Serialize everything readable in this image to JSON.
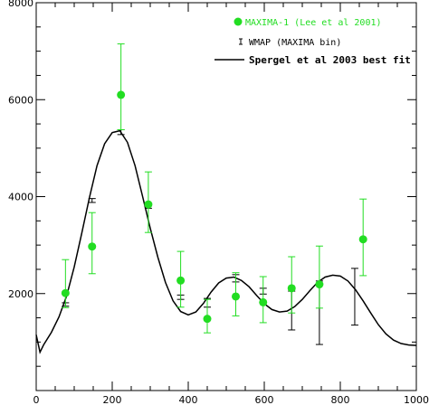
{
  "chart_data": {
    "type": "scatter",
    "title": "",
    "xlabel": "",
    "ylabel": "",
    "xlim": [
      0,
      1000
    ],
    "ylim": [
      0,
      8000
    ],
    "x_ticks": [
      0,
      200,
      400,
      600,
      800,
      1000
    ],
    "y_ticks": [
      2000,
      4000,
      6000,
      8000
    ],
    "grid": false,
    "legend_position": "top-right",
    "colors": {
      "maxima": "#22dd22",
      "wmap": "#000000",
      "fit": "#000000"
    },
    "series": [
      {
        "name": "MAXIMA-1 (Lee et al 2001)",
        "kind": "points-with-errorbars",
        "x": [
          77,
          147,
          223,
          295,
          380,
          450,
          525,
          597,
          672,
          745,
          860
        ],
        "y": [
          2010,
          2970,
          6100,
          3840,
          2270,
          1480,
          1940,
          1820,
          2110,
          2190,
          3120
        ],
        "ylow": [
          1710,
          2410,
          5380,
          3260,
          1720,
          1190,
          1540,
          1400,
          1600,
          1700,
          2370
        ],
        "yhigh": [
          2700,
          3670,
          7150,
          4510,
          2870,
          1880,
          2430,
          2350,
          2760,
          2980,
          3950
        ]
      },
      {
        "name": "WMAP (MAXIMA bin)",
        "kind": "errorbars",
        "x": [
          77,
          147,
          223,
          295,
          380,
          450,
          525,
          597,
          672,
          745,
          838
        ],
        "ylow": [
          1740,
          3880,
          5280,
          3760,
          1880,
          1720,
          2240,
          1990,
          1250,
          950,
          1350
        ],
        "yhigh": [
          1810,
          3960,
          5380,
          3830,
          1970,
          1900,
          2390,
          2110,
          2050,
          2260,
          2520
        ]
      },
      {
        "name": "Spergel et al 2003 best fit",
        "kind": "line",
        "x": [
          0,
          10,
          20,
          40,
          60,
          80,
          100,
          120,
          140,
          160,
          180,
          200,
          220,
          240,
          260,
          280,
          300,
          320,
          340,
          360,
          380,
          400,
          420,
          440,
          460,
          480,
          500,
          520,
          540,
          560,
          580,
          600,
          620,
          640,
          660,
          680,
          700,
          720,
          740,
          760,
          780,
          800,
          820,
          840,
          860,
          880,
          900,
          920,
          940,
          960,
          980,
          1000
        ],
        "y": [
          1150,
          790,
          950,
          1200,
          1520,
          1950,
          2550,
          3250,
          3980,
          4640,
          5090,
          5320,
          5360,
          5120,
          4640,
          4000,
          3350,
          2750,
          2230,
          1850,
          1630,
          1560,
          1620,
          1800,
          2030,
          2220,
          2320,
          2340,
          2270,
          2140,
          1960,
          1790,
          1670,
          1620,
          1640,
          1730,
          1880,
          2060,
          2230,
          2340,
          2380,
          2360,
          2260,
          2080,
          1850,
          1600,
          1360,
          1170,
          1040,
          970,
          940,
          930
        ]
      }
    ]
  }
}
